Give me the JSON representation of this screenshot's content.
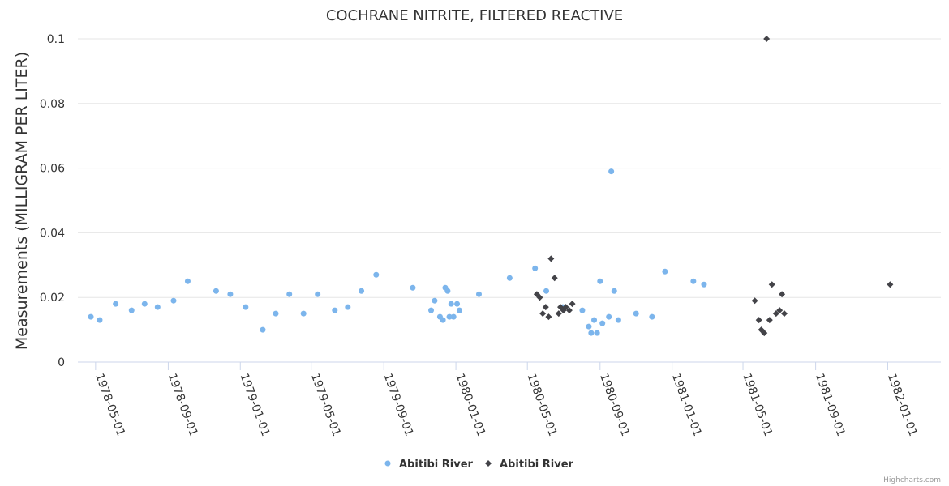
{
  "chart_data": {
    "type": "scatter",
    "title": "COCHRANE NITRITE, FILTERED REACTIVE",
    "xlabel": "",
    "ylabel": "Measurements (MILLIGRAM PER LITER)",
    "ylim": [
      0,
      0.1
    ],
    "yticks": [
      "0",
      "0.02",
      "0.04",
      "0.06",
      "0.08",
      "0.1"
    ],
    "xlim": [
      "1978-04-01",
      "1982-04-01"
    ],
    "xticks": [
      "1978-05-01",
      "1978-09-01",
      "1979-01-01",
      "1979-05-01",
      "1979-09-01",
      "1980-01-01",
      "1980-05-01",
      "1980-09-01",
      "1981-01-01",
      "1981-05-01",
      "1981-09-01",
      "1982-01-01"
    ],
    "grid": true,
    "legend_position": "bottom-center",
    "credits": "Highcharts.com",
    "series": [
      {
        "name": "Abitibi River",
        "marker": "circle",
        "color": "#7cb5ec",
        "points": [
          [
            "1978-04-23",
            0.014
          ],
          [
            "1978-05-08",
            0.013
          ],
          [
            "1978-06-04",
            0.018
          ],
          [
            "1978-07-01",
            0.016
          ],
          [
            "1978-07-23",
            0.018
          ],
          [
            "1978-08-14",
            0.017
          ],
          [
            "1978-09-10",
            0.019
          ],
          [
            "1978-10-04",
            0.025
          ],
          [
            "1978-11-21",
            0.022
          ],
          [
            "1978-12-15",
            0.021
          ],
          [
            "1979-01-10",
            0.017
          ],
          [
            "1979-02-08",
            0.01
          ],
          [
            "1979-03-02",
            0.015
          ],
          [
            "1979-03-25",
            0.021
          ],
          [
            "1979-04-18",
            0.015
          ],
          [
            "1979-05-12",
            0.021
          ],
          [
            "1979-06-10",
            0.016
          ],
          [
            "1979-07-02",
            0.017
          ],
          [
            "1979-07-25",
            0.022
          ],
          [
            "1979-08-19",
            0.027
          ],
          [
            "1979-10-20",
            0.023
          ],
          [
            "1979-11-20",
            0.016
          ],
          [
            "1979-11-26",
            0.019
          ],
          [
            "1979-12-05",
            0.014
          ],
          [
            "1979-12-10",
            0.013
          ],
          [
            "1979-12-14",
            0.023
          ],
          [
            "1979-12-18",
            0.022
          ],
          [
            "1979-12-21",
            0.014
          ],
          [
            "1979-12-24",
            0.018
          ],
          [
            "1979-12-28",
            0.014
          ],
          [
            "1980-01-03",
            0.018
          ],
          [
            "1980-01-07",
            0.016
          ],
          [
            "1980-02-09",
            0.021
          ],
          [
            "1980-04-01",
            0.026
          ],
          [
            "1980-05-14",
            0.029
          ],
          [
            "1980-06-02",
            0.022
          ],
          [
            "1980-06-30",
            0.017
          ],
          [
            "1980-08-02",
            0.016
          ],
          [
            "1980-08-13",
            0.011
          ],
          [
            "1980-08-17",
            0.009
          ],
          [
            "1980-08-22",
            0.013
          ],
          [
            "1980-08-27",
            0.009
          ],
          [
            "1980-09-01",
            0.025
          ],
          [
            "1980-09-05",
            0.012
          ],
          [
            "1980-09-16",
            0.014
          ],
          [
            "1980-09-20",
            0.059
          ],
          [
            "1980-09-25",
            0.022
          ],
          [
            "1980-10-02",
            0.013
          ],
          [
            "1980-11-01",
            0.015
          ],
          [
            "1980-11-28",
            0.014
          ],
          [
            "1980-12-20",
            0.028
          ],
          [
            "1981-02-06",
            0.025
          ],
          [
            "1981-02-24",
            0.024
          ]
        ]
      },
      {
        "name": "Abitibi River",
        "marker": "diamond",
        "color": "#434348",
        "points": [
          [
            "1980-05-17",
            0.021
          ],
          [
            "1980-05-22",
            0.02
          ],
          [
            "1980-05-27",
            0.015
          ],
          [
            "1980-06-01",
            0.017
          ],
          [
            "1980-06-06",
            0.014
          ],
          [
            "1980-06-10",
            0.032
          ],
          [
            "1980-06-16",
            0.026
          ],
          [
            "1980-06-23",
            0.015
          ],
          [
            "1980-06-26",
            0.017
          ],
          [
            "1980-07-01",
            0.016
          ],
          [
            "1980-07-05",
            0.017
          ],
          [
            "1980-07-11",
            0.016
          ],
          [
            "1980-07-16",
            0.018
          ],
          [
            "1981-05-21",
            0.019
          ],
          [
            "1981-05-28",
            0.013
          ],
          [
            "1981-06-01",
            0.01
          ],
          [
            "1981-06-06",
            0.009
          ],
          [
            "1981-06-10",
            0.1
          ],
          [
            "1981-06-15",
            0.013
          ],
          [
            "1981-06-19",
            0.024
          ],
          [
            "1981-06-26",
            0.015
          ],
          [
            "1981-07-02",
            0.016
          ],
          [
            "1981-07-06",
            0.021
          ],
          [
            "1981-07-10",
            0.015
          ],
          [
            "1982-01-05",
            0.024
          ]
        ]
      }
    ]
  }
}
